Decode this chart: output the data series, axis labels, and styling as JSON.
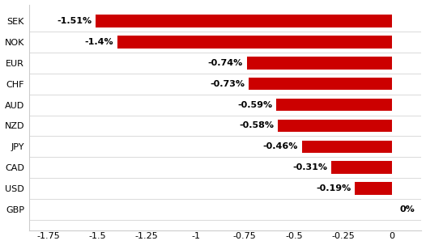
{
  "categories": [
    "GBP",
    "USD",
    "CAD",
    "JPY",
    "NZD",
    "AUD",
    "CHF",
    "EUR",
    "NOK",
    "SEK"
  ],
  "values": [
    0.0,
    -0.19,
    -0.31,
    -0.46,
    -0.58,
    -0.59,
    -0.73,
    -0.74,
    -1.4,
    -1.51
  ],
  "labels": [
    "0%",
    "-0.19%",
    "-0.31%",
    "-0.46%",
    "-0.58%",
    "-0.59%",
    "-0.73%",
    "-0.74%",
    "-1.4%",
    "-1.51%"
  ],
  "bar_color": "#cc0000",
  "background_color": "#ffffff",
  "xlim": [
    -1.85,
    0.15
  ],
  "xticks": [
    -1.75,
    -1.5,
    -1.25,
    -1.0,
    -0.75,
    -0.5,
    -0.25,
    0.0
  ],
  "xtick_labels": [
    "-1.75",
    "-1.5",
    "-1.25",
    "-1",
    "-0.75",
    "-0.5",
    "-0.25",
    "0"
  ],
  "bar_height": 0.6,
  "label_fontsize": 8,
  "tick_fontsize": 8,
  "ytick_fontsize": 8,
  "text_color": "#000000",
  "spine_color": "#cccccc"
}
